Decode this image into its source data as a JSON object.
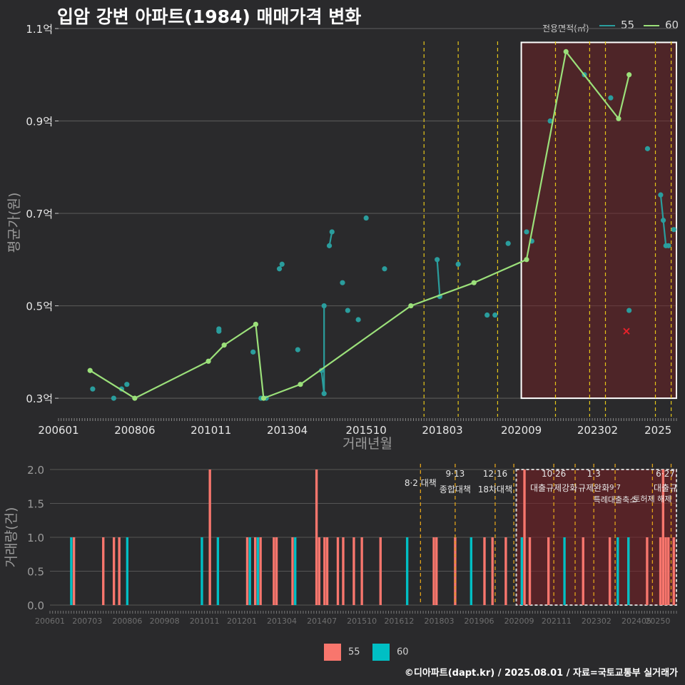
{
  "title": "입암 강변 아파트(1984) 매매가격 변화",
  "credit": "©디아파트(dapt.kr) / 2025.08.01 / 자료=국토교통부 실거래가",
  "legend": {
    "title": "전용면적(㎡)",
    "items": [
      {
        "name": "55",
        "line_color": "#2a9d9d",
        "bar_color": "#f8766d"
      },
      {
        "name": "60",
        "line_color": "#9be07a",
        "bar_color": "#00bfc4"
      }
    ]
  },
  "colors": {
    "background": "#2a2a2c",
    "grid": "#555555",
    "policy": "#e6c619",
    "highlight": "#ffffff"
  },
  "chart_data": [
    {
      "type": "line",
      "title": "입암 강변 아파트(1984) 매매가격 변화",
      "xlabel": "거래년월",
      "ylabel": "평균가(원)",
      "xlim": [
        "2006-01",
        "2025-08"
      ],
      "ylim": [
        0.26,
        1.1
      ],
      "y_ticks": [
        {
          "v": 0.3,
          "label": "0.3억"
        },
        {
          "v": 0.5,
          "label": "0.5억"
        },
        {
          "v": 0.7,
          "label": "0.7억"
        },
        {
          "v": 0.9,
          "label": "0.9억"
        },
        {
          "v": 1.1,
          "label": "1.1억"
        }
      ],
      "x_ticks": [
        "200601",
        "200806",
        "201011",
        "201304",
        "201510",
        "201803",
        "202009",
        "202302",
        "2025"
      ],
      "highlight_range": [
        "2020-09",
        "2025-08"
      ],
      "policy_lines": [
        "2017-08",
        "2018-09",
        "2019-12",
        "2021-10",
        "2022-11",
        "2023-05",
        "2024-12",
        "2025-06"
      ],
      "series": [
        {
          "name": "55",
          "points": [
            [
              "2007-02",
              0.32
            ],
            [
              "2007-10",
              0.3
            ],
            [
              "2008-01",
              0.32
            ],
            [
              "2008-03",
              0.33
            ],
            [
              "2011-02",
              0.45
            ],
            [
              "2011-02",
              0.445
            ],
            [
              "2012-03",
              0.4
            ],
            [
              "2012-06",
              0.3
            ],
            [
              "2012-08",
              0.3
            ],
            [
              "2013-01",
              0.58
            ],
            [
              "2013-02",
              0.59
            ],
            [
              "2013-08",
              0.405
            ],
            [
              "2014-05",
              0.36
            ],
            [
              "2014-06",
              0.31
            ],
            [
              "2014-06",
              0.5
            ],
            [
              "2014-08",
              0.63
            ],
            [
              "2014-09",
              0.66
            ],
            [
              "2015-01",
              0.55
            ],
            [
              "2015-03",
              0.49
            ],
            [
              "2015-07",
              0.47
            ],
            [
              "2015-10",
              0.69
            ],
            [
              "2016-05",
              0.58
            ],
            [
              "2018-01",
              0.6
            ],
            [
              "2018-02",
              0.52
            ],
            [
              "2018-09",
              0.59
            ],
            [
              "2019-08",
              0.48
            ],
            [
              "2019-11",
              0.48
            ],
            [
              "2020-04",
              0.635
            ],
            [
              "2020-11",
              0.66
            ],
            [
              "2021-01",
              0.64
            ],
            [
              "2021-08",
              0.9
            ],
            [
              "2022-09",
              1.0
            ],
            [
              "2023-07",
              0.95
            ],
            [
              "2024-02",
              0.49
            ],
            [
              "2024-09",
              0.84
            ],
            [
              "2025-02",
              0.74
            ],
            [
              "2025-03",
              0.685
            ],
            [
              "2025-04",
              0.63
            ],
            [
              "2025-05",
              0.63
            ],
            [
              "2025-07",
              0.665
            ]
          ]
        },
        {
          "name": "60",
          "points": [
            [
              "2007-01",
              0.36
            ],
            [
              "2008-06",
              0.3
            ],
            [
              "2010-10",
              0.38
            ],
            [
              "2011-04",
              0.415
            ],
            [
              "2012-04",
              0.46
            ],
            [
              "2012-07",
              0.3
            ],
            [
              "2013-09",
              0.33
            ],
            [
              "2017-03",
              0.5
            ],
            [
              "2019-03",
              0.55
            ],
            [
              "2020-11",
              0.6
            ],
            [
              "2022-02",
              1.05
            ],
            [
              "2023-10",
              0.905
            ],
            [
              "2024-02",
              1.0
            ]
          ]
        }
      ],
      "markers": [
        {
          "x": "2024-01",
          "y": 0.445,
          "symbol": "x",
          "color": "#e8222a"
        }
      ]
    },
    {
      "type": "bar",
      "ylabel": "거래량(건)",
      "ylim": [
        0,
        2
      ],
      "y_ticks": [
        "0.0",
        "0.5",
        "1.0",
        "1.5",
        "2.0"
      ],
      "x_ticks": [
        "200601",
        "200703",
        "200806",
        "200908",
        "201011",
        "201201",
        "201304",
        "201407",
        "201510",
        "201612",
        "201803",
        "201906",
        "202009",
        "202111",
        "202302",
        "202405",
        "20250"
      ],
      "highlight_range": [
        "2020-09",
        "2025-08"
      ],
      "policies": [
        {
          "x": "2017-08",
          "date": "8·2",
          "label": "대책"
        },
        {
          "x": "2018-09",
          "date": "9·13",
          "label": "종합대책"
        },
        {
          "x": "2019-12",
          "date": "12·16",
          "label": "18차대책"
        },
        {
          "x": "2020-07",
          "date": "",
          "label": ""
        },
        {
          "x": "2021-10",
          "date": "10·26",
          "label": "대출규제강화"
        },
        {
          "x": "2022-06",
          "date": "",
          "label": ""
        },
        {
          "x": "2023-01",
          "date": "1·3",
          "label": "규제완화"
        },
        {
          "x": "2023-09",
          "date": "9·7",
          "label": "특례대출축소"
        },
        {
          "x": "2024-11",
          "date": "",
          "label": "토허제 해제"
        },
        {
          "x": "2025-06",
          "date": "6·27",
          "label": "대출규"
        }
      ],
      "series": [
        {
          "name": "55",
          "bars": [
            [
              "2006-10",
              1
            ],
            [
              "2007-09",
              1
            ],
            [
              "2008-01",
              1
            ],
            [
              "2008-03",
              1
            ],
            [
              "2011-01",
              2
            ],
            [
              "2012-03",
              1
            ],
            [
              "2012-06",
              1
            ],
            [
              "2012-08",
              1
            ],
            [
              "2013-01",
              1
            ],
            [
              "2013-02",
              1
            ],
            [
              "2013-08",
              1
            ],
            [
              "2014-05",
              2
            ],
            [
              "2014-06",
              1
            ],
            [
              "2014-08",
              1
            ],
            [
              "2014-09",
              1
            ],
            [
              "2015-01",
              1
            ],
            [
              "2015-03",
              1
            ],
            [
              "2015-07",
              1
            ],
            [
              "2015-10",
              1
            ],
            [
              "2016-05",
              1
            ],
            [
              "2018-01",
              1
            ],
            [
              "2018-02",
              1
            ],
            [
              "2018-09",
              1
            ],
            [
              "2019-08",
              1
            ],
            [
              "2019-11",
              1
            ],
            [
              "2020-04",
              1
            ],
            [
              "2020-11",
              2
            ],
            [
              "2021-01",
              1
            ],
            [
              "2021-08",
              1
            ],
            [
              "2022-09",
              1
            ],
            [
              "2023-07",
              1
            ],
            [
              "2024-02",
              1
            ],
            [
              "2024-09",
              1
            ],
            [
              "2025-02",
              1
            ],
            [
              "2025-03",
              2
            ],
            [
              "2025-04",
              1
            ],
            [
              "2025-05",
              1
            ],
            [
              "2025-07",
              1
            ]
          ]
        },
        {
          "name": "60",
          "bars": [
            [
              "2006-09",
              1
            ],
            [
              "2008-06",
              1
            ],
            [
              "2010-10",
              1
            ],
            [
              "2011-04",
              1
            ],
            [
              "2012-04",
              1
            ],
            [
              "2012-07",
              1
            ],
            [
              "2013-09",
              1
            ],
            [
              "2017-03",
              1
            ],
            [
              "2019-03",
              1
            ],
            [
              "2020-10",
              1
            ],
            [
              "2022-02",
              1
            ],
            [
              "2023-10",
              1
            ],
            [
              "2024-02",
              1
            ]
          ]
        }
      ]
    }
  ]
}
